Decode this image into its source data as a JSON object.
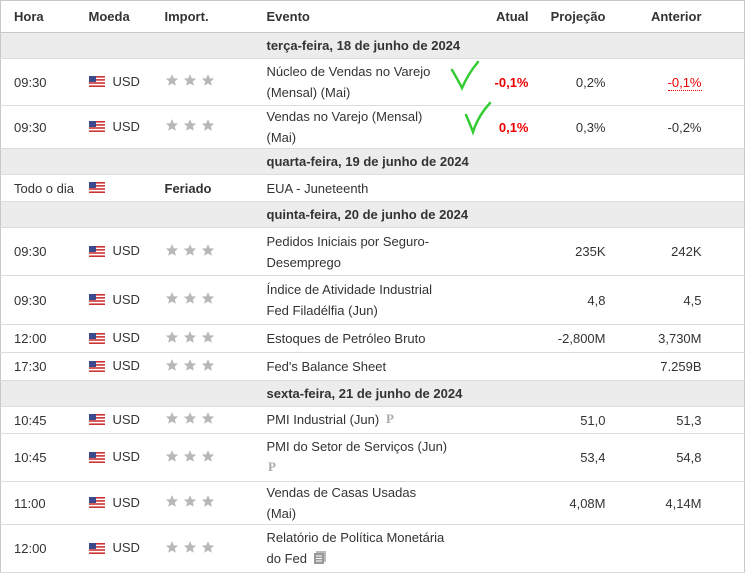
{
  "table": {
    "headers": [
      "Hora",
      "Moeda",
      "Import.",
      "Evento",
      "Atual",
      "Projeção",
      "Anterior"
    ],
    "rows": [
      {
        "day": "terça-feira, 18 de junho de 2024"
      },
      {
        "time": "09:30",
        "currency": "USD",
        "event": "Núcleo de Vendas no Varejo (Mensal) (Mai)",
        "actual": "-0,1%",
        "forecast": "0,2%",
        "previous": "-0,1%"
      },
      {
        "time": "09:30",
        "currency": "USD",
        "event": "Vendas no Varejo (Mensal) (Mai)",
        "actual": "0,1%",
        "forecast": "0,3%",
        "previous": "-0,2%"
      },
      {
        "day": "quarta-feira, 19 de junho de 2024"
      },
      {
        "time": "Todo o dia",
        "importance": "Feriado",
        "event": "EUA - Juneteenth"
      },
      {
        "day": "quinta-feira, 20 de junho de 2024"
      },
      {
        "time": "09:30",
        "currency": "USD",
        "event": "Pedidos Iniciais por Seguro-Desemprego",
        "forecast": "235K",
        "previous": "242K"
      },
      {
        "time": "09:30",
        "currency": "USD",
        "event": "Índice de Atividade Industrial Fed Filadélfia (Jun)",
        "forecast": "4,8",
        "previous": "4,5"
      },
      {
        "time": "12:00",
        "currency": "USD",
        "event": "Estoques de Petróleo Bruto",
        "forecast": "-2,800M",
        "previous": "3,730M"
      },
      {
        "time": "17:30",
        "currency": "USD",
        "event": "Fed's Balance Sheet",
        "previous": "7.259B"
      },
      {
        "day": "sexta-feira, 21 de junho de 2024"
      },
      {
        "time": "10:45",
        "currency": "USD",
        "event": "PMI Industrial (Jun)",
        "forecast": "51,0",
        "previous": "51,3"
      },
      {
        "time": "10:45",
        "currency": "USD",
        "event": "PMI do Setor de Serviços (Jun)",
        "forecast": "53,4",
        "previous": "54,8"
      },
      {
        "time": "11:00",
        "currency": "USD",
        "event": "Vendas de Casas Usadas (Mai)",
        "forecast": "4,08M",
        "previous": "4,14M"
      },
      {
        "time": "12:00",
        "currency": "USD",
        "event": "Relatório de Política Monetária do Fed"
      }
    ]
  }
}
